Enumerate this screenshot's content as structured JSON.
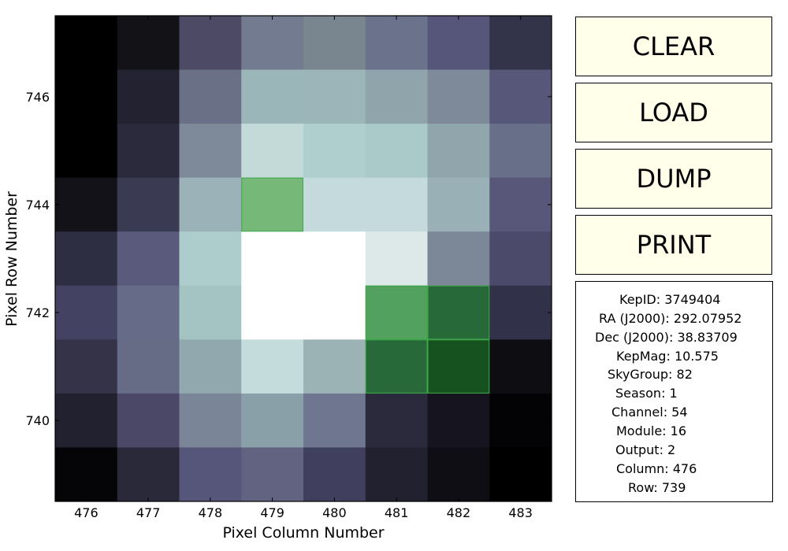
{
  "buttons": {
    "clear": "CLEAR",
    "load": "LOAD",
    "dump": "DUMP",
    "print": "PRINT"
  },
  "info": {
    "kepid": "KepID: 3749404",
    "ra": "RA (J2000): 292.07952",
    "dec": "Dec (J2000): 38.83709",
    "kepmag": "KepMag: 10.575",
    "skygroup": "SkyGroup: 82",
    "season": "Season: 1",
    "channel": "Channel: 54",
    "module": "Module: 16",
    "output": "Output: 2",
    "column": "Column: 476",
    "row": "Row: 739"
  },
  "chart_data": {
    "type": "heatmap",
    "xlabel": "Pixel Column Number",
    "ylabel": "Pixel Row Number",
    "x_range": [
      475.5,
      483.5
    ],
    "y_range": [
      738.5,
      747.5
    ],
    "xticks": [
      476,
      477,
      478,
      479,
      480,
      481,
      482,
      483
    ],
    "yticks": [
      740,
      742,
      744,
      746
    ],
    "columns": [
      476,
      477,
      478,
      479,
      480,
      481,
      482,
      483
    ],
    "rows": [
      747,
      746,
      745,
      744,
      743,
      742,
      741,
      740,
      739
    ],
    "pixel_colors": [
      [
        "#000000",
        "#131317",
        "#4c4a65",
        "#737b90",
        "#79858f",
        "#6b728c",
        "#56557a",
        "#33334a"
      ],
      [
        "#000000",
        "#222231",
        "#6a7187",
        "#9bb6b9",
        "#9bb5b8",
        "#8fa5ab",
        "#7e8a99",
        "#575879"
      ],
      [
        "#000000",
        "#2b2a3d",
        "#7e8a99",
        "#c3dad9",
        "#afcfce",
        "#a9cac9",
        "#91a6ac",
        "#686f89"
      ],
      [
        "#121218",
        "#3a3a53",
        "#9bb3b8",
        "#75b878",
        "#c4dadc",
        "#c4dadc",
        "#98b0b6",
        "#585779"
      ],
      [
        "#2e2e43",
        "#5a5a7c",
        "#adcdcc",
        "#ffffff",
        "#ffffff",
        "#dde9e9",
        "#7c8897",
        "#4c4a6b"
      ],
      [
        "#434262",
        "#666b88",
        "#a4c4c3",
        "#ffffff",
        "#ffffff",
        "#52a15f",
        "#28693a",
        "#32314a"
      ],
      [
        "#343348",
        "#666b86",
        "#91a9ae",
        "#c4dcdb",
        "#9cb3b6",
        "#28693a",
        "#165220",
        "#0e0e12"
      ],
      [
        "#212130",
        "#4a4866",
        "#7a8697",
        "#8aa0a8",
        "#6f7790",
        "#2b2a3d",
        "#16151f",
        "#030305"
      ],
      [
        "#050508",
        "#2a2939",
        "#55567a",
        "#616380",
        "#413f5e",
        "#222130",
        "#0f0e14",
        "#000000"
      ]
    ]
  }
}
